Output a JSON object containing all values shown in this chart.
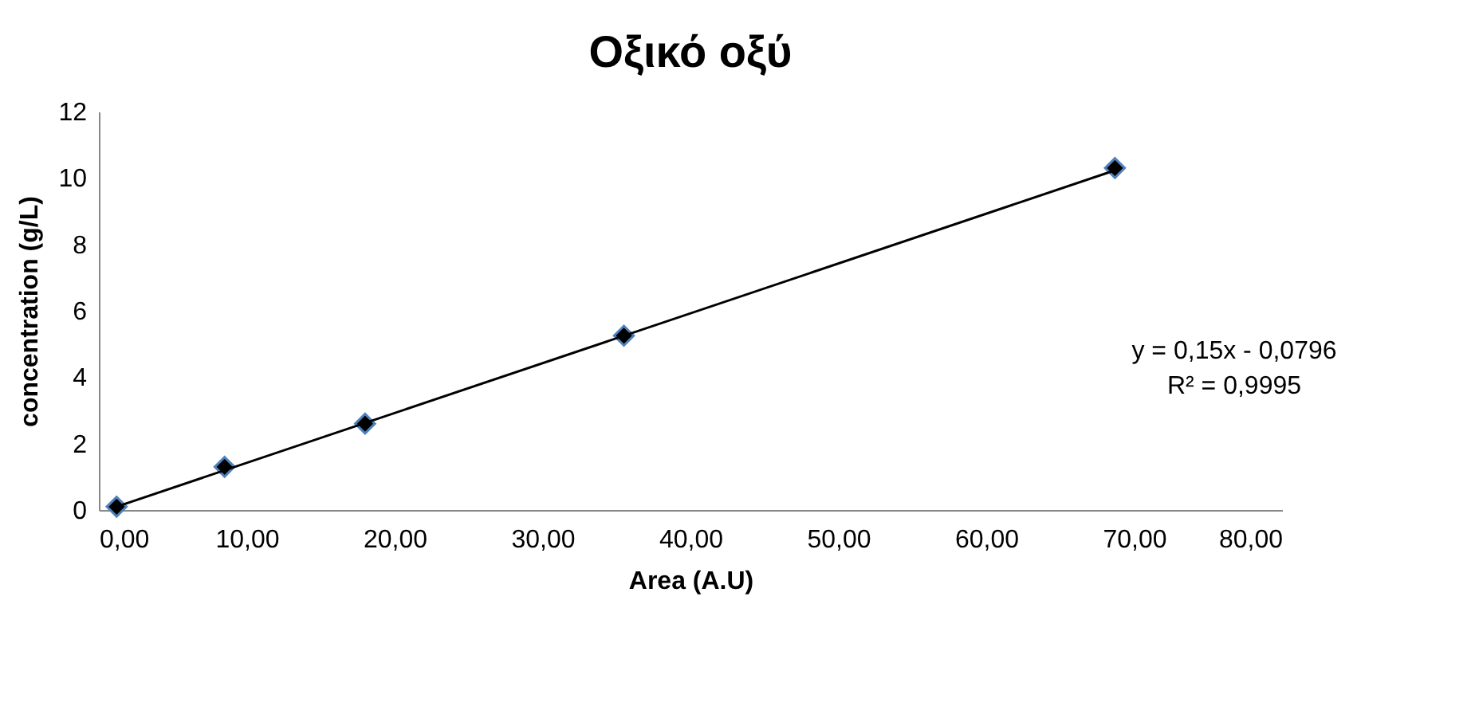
{
  "chart_data": {
    "type": "scatter",
    "title": "Οξικό οξύ",
    "xlabel": "Area (A.U)",
    "ylabel": "concentration (g/L)",
    "x": [
      1.2,
      8.5,
      18.0,
      35.5,
      68.7
    ],
    "series": [
      {
        "color": "#000000",
        "values": [
          0.1,
          1.3,
          2.6,
          5.25,
          10.3
        ],
        "marker": "diamond"
      },
      {
        "type": "line",
        "color": "#000000",
        "x": [
          1.2,
          68.7
        ],
        "values": [
          0.1,
          10.23
        ],
        "marker": "none",
        "line_style": "solid"
      }
    ],
    "xlim": [
      0,
      80
    ],
    "ylim": [
      0,
      12
    ],
    "xticks": [
      {
        "value": 0,
        "label": "0,00"
      },
      {
        "value": 10,
        "label": "10,00"
      },
      {
        "value": 20,
        "label": "20,00"
      },
      {
        "value": 30,
        "label": "30,00"
      },
      {
        "value": 40,
        "label": "40,00"
      },
      {
        "value": 50,
        "label": "50,00"
      },
      {
        "value": 60,
        "label": "60,00"
      },
      {
        "value": 70,
        "label": "70,00"
      },
      {
        "value": 80,
        "label": "80,00"
      }
    ],
    "yticks": [
      0,
      2,
      4,
      6,
      8,
      10,
      12
    ],
    "annotations": [
      "y = 0,15x - 0,0796",
      "R² = 0,9995"
    ],
    "grid": false
  }
}
